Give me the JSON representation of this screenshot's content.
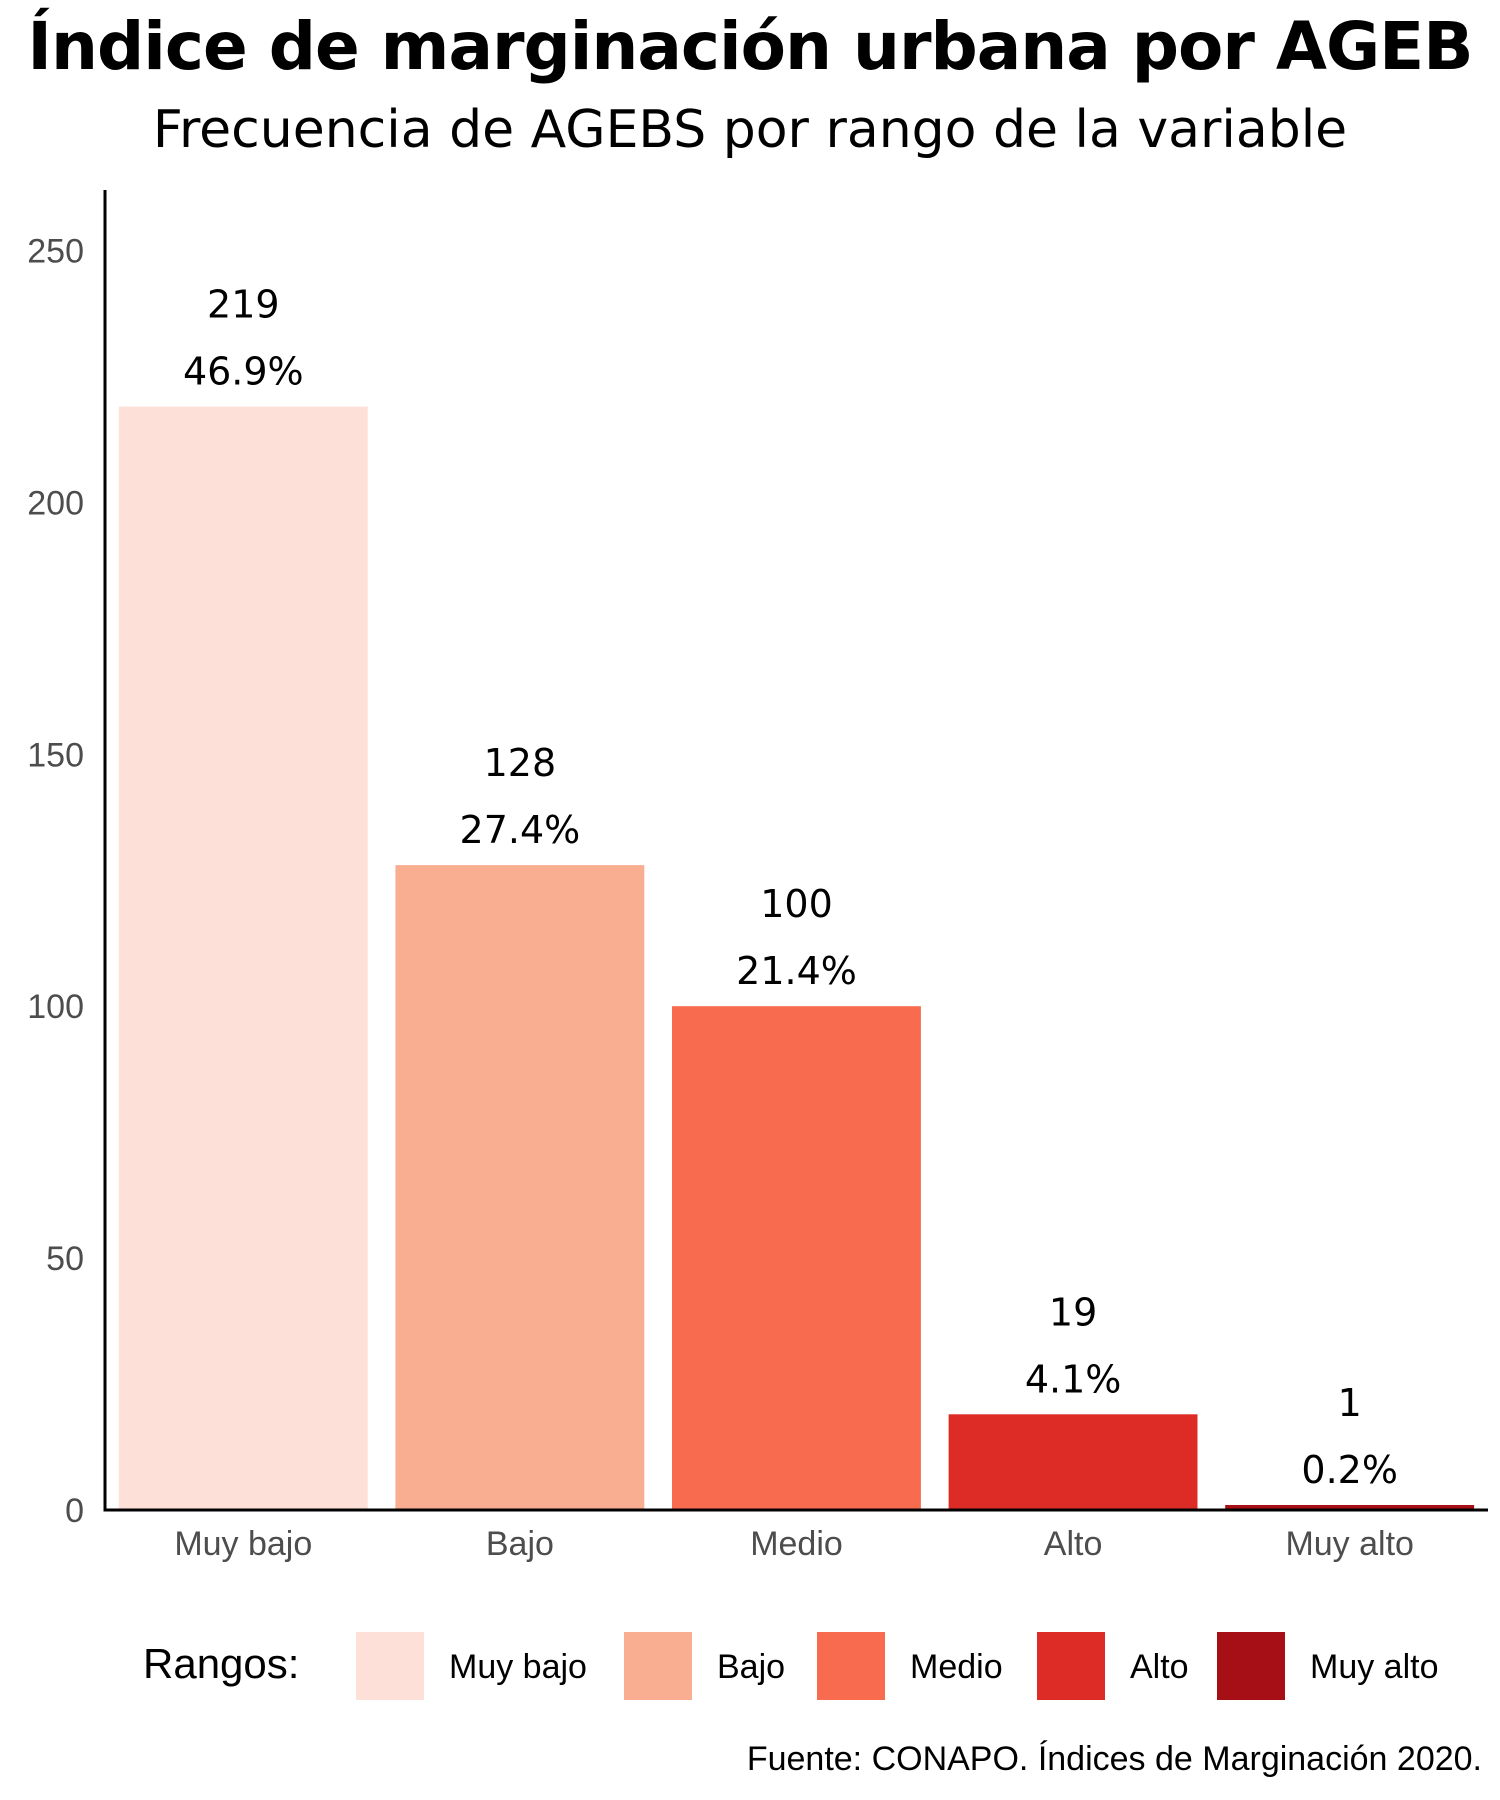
{
  "chart_data": {
    "type": "bar",
    "title": "Índice de marginación urbana por AGEB",
    "subtitle": "Frecuencia de AGEBS por rango de la variable",
    "categories": [
      "Muy bajo",
      "Bajo",
      "Medio",
      "Alto",
      "Muy alto"
    ],
    "values": [
      219,
      128,
      100,
      19,
      1
    ],
    "percent_labels": [
      "46.9%",
      "27.4%",
      "21.4%",
      "4.1%",
      "0.2%"
    ],
    "colors": [
      "#fde0d8",
      "#f9ae91",
      "#f86b4e",
      "#dc2c25",
      "#a50f15"
    ],
    "ylim": [
      0,
      262
    ],
    "yticks": [
      0,
      50,
      100,
      150,
      200,
      250
    ],
    "xlabel": "",
    "ylabel": "",
    "grid": false,
    "legend": {
      "title": "Rangos:",
      "position": "bottom",
      "items": [
        "Muy bajo",
        "Bajo",
        "Medio",
        "Alto",
        "Muy alto"
      ]
    },
    "caption": "Fuente: CONAPO. Índices de Marginación 2020."
  }
}
